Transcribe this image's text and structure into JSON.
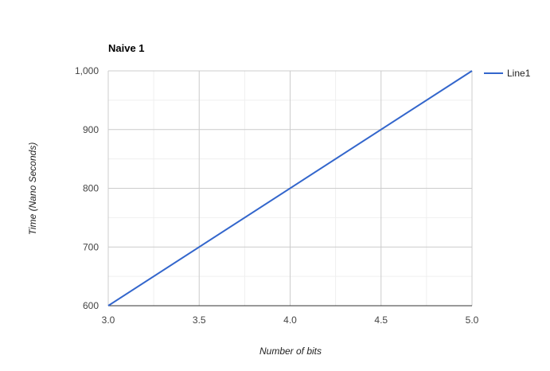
{
  "chart_data": {
    "type": "line",
    "title": "Naive 1",
    "xlabel": "Number of bits",
    "ylabel": "Time (Nano Seconds)",
    "xlim": [
      3.0,
      5.0
    ],
    "ylim": [
      600,
      1000
    ],
    "x_ticks": [
      "3.0",
      "3.5",
      "4.0",
      "4.5",
      "5.0"
    ],
    "y_ticks": [
      "600",
      "700",
      "800",
      "900",
      "1,000"
    ],
    "grid": true,
    "legend_position": "right",
    "series": [
      {
        "name": "Line1",
        "color": "#3366cc",
        "x": [
          3.0,
          5.0
        ],
        "y": [
          600,
          1000
        ]
      }
    ]
  }
}
